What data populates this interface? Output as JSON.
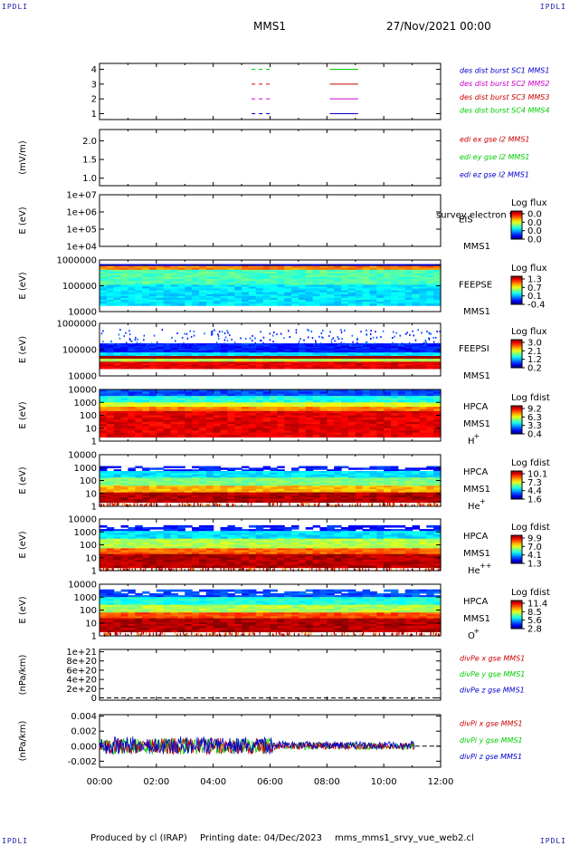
{
  "header": {
    "corner_label": "IPDLI",
    "spacecraft": "MMS1",
    "datetime": "27/Nov/2021 00:00"
  },
  "footer": {
    "produced_by": "Produced by cl (IRAP)",
    "printing_date": "Printing date: 04/Dec/2023",
    "script_name": "mms_mms1_srvy_vue_web2.cl"
  },
  "colors": {
    "blue": "#0000cc",
    "magenta": "#cc00cc",
    "red": "#cc0000",
    "green": "#00cc00"
  },
  "chart_data": [
    {
      "type": "line",
      "name": "des-dist-burst",
      "yticks": [
        "1",
        "2",
        "3",
        "4"
      ],
      "ylim": [
        0.6,
        4.4
      ],
      "ylabel": "",
      "legend": [
        {
          "text": "des dist burst SC1 MMS1",
          "color": "#0000cc"
        },
        {
          "text": "des dist burst SC2 MMS2",
          "color": "#cc00cc"
        },
        {
          "text": "des dist burst SC3 MMS3",
          "color": "#cc0000"
        },
        {
          "text": "des dist burst SC4 MMS4",
          "color": "#00cc00"
        }
      ],
      "segments": [
        {
          "y": 1,
          "color": "#0000cc",
          "dashed": [
            5.35,
            6.05
          ],
          "solid": [
            8.1,
            9.1
          ]
        },
        {
          "y": 2,
          "color": "#cc00cc",
          "dashed": [
            5.35,
            6.05
          ],
          "solid": [
            8.1,
            9.1
          ]
        },
        {
          "y": 3,
          "color": "#cc0000",
          "dashed": [
            5.35,
            6.05
          ],
          "solid": [
            8.1,
            9.1
          ]
        },
        {
          "y": 4,
          "color": "#00cc00",
          "dashed": [
            5.35,
            6.05
          ],
          "solid": [
            8.1,
            9.1
          ]
        }
      ]
    },
    {
      "type": "line",
      "name": "edi-e",
      "ylabel": "(mV/m)",
      "yticks": [
        "1.0",
        "1.5",
        "2.0"
      ],
      "ylim": [
        0.8,
        2.3
      ],
      "legend": [
        {
          "text": "edi ex gse l2 MMS1",
          "color": "#cc0000"
        },
        {
          "text": "edi ey gse l2 MMS1",
          "color": "#00cc00"
        },
        {
          "text": "edi ez gse l2 MMS1",
          "color": "#0000cc"
        }
      ]
    },
    {
      "type": "heatmap",
      "name": "eis",
      "ylabel": "E (eV)",
      "yticks": [
        "1e+04",
        "1e+05",
        "1e+06",
        "1e+07"
      ],
      "instrument": "EIS",
      "spacecraft": "MMS1",
      "extra_label": "survey electron to",
      "colorbar_title": "Log flux",
      "colorbar_ticks": [
        "0.0",
        "0.0",
        "0.0",
        "0.0"
      ],
      "empty": true
    },
    {
      "type": "heatmap",
      "name": "feeps-e",
      "ylabel": "E (eV)",
      "yticks": [
        "10000",
        "100000",
        "1000000"
      ],
      "instrument": "FEEPSE",
      "spacecraft": "MMS1",
      "colorbar_title": "Log flux",
      "colorbar_ticks": [
        "1.3",
        "0.7",
        "0.1",
        "-0.4"
      ],
      "band": [
        0.08,
        0.88
      ]
    },
    {
      "type": "heatmap",
      "name": "feeps-i",
      "ylabel": "E (eV)",
      "yticks": [
        "10000",
        "100000",
        "1000000"
      ],
      "instrument": "FEEPSI",
      "spacecraft": "MMS1",
      "colorbar_title": "Log flux",
      "colorbar_ticks": [
        "3.0",
        "2.1",
        "1.2",
        "0.2"
      ],
      "band": [
        0.38,
        0.86
      ]
    },
    {
      "type": "heatmap",
      "name": "hpca-h",
      "ylabel": "E (eV)",
      "yticks": [
        "1",
        "10",
        "100",
        "1000",
        "10000"
      ],
      "instrument": "HPCA",
      "spacecraft": "MMS1",
      "species": "H",
      "species_sup": "+",
      "colorbar_title": "Log fdist",
      "colorbar_ticks": [
        "9.2",
        "6.3",
        "3.3",
        "0.4"
      ],
      "band": [
        0.0,
        0.92
      ]
    },
    {
      "type": "heatmap",
      "name": "hpca-he",
      "ylabel": "E (eV)",
      "yticks": [
        "1",
        "10",
        "100",
        "1000",
        "10000"
      ],
      "instrument": "HPCA",
      "spacecraft": "MMS1",
      "species": "He",
      "species_sup": "+",
      "colorbar_title": "Log fdist",
      "colorbar_ticks": [
        "10.1",
        "7.3",
        "4.4",
        "1.6"
      ],
      "band": [
        0.22,
        0.92
      ]
    },
    {
      "type": "heatmap",
      "name": "hpca-he2",
      "ylabel": "E (eV)",
      "yticks": [
        "1",
        "10",
        "100",
        "1000",
        "10000"
      ],
      "instrument": "HPCA",
      "spacecraft": "MMS1",
      "species": "He",
      "species_sup": "++",
      "colorbar_title": "Log fdist",
      "colorbar_ticks": [
        "9.9",
        "7.0",
        "4.1",
        "1.3"
      ],
      "band": [
        0.12,
        0.94
      ]
    },
    {
      "type": "heatmap",
      "name": "hpca-o",
      "ylabel": "E (eV)",
      "yticks": [
        "1",
        "10",
        "100",
        "1000",
        "10000"
      ],
      "instrument": "HPCA",
      "spacecraft": "MMS1",
      "species": "O",
      "species_sup": "+",
      "colorbar_title": "Log fdist",
      "colorbar_ticks": [
        "11.4",
        "8.5",
        "5.6",
        "2.8"
      ],
      "band": [
        0.1,
        0.92
      ]
    },
    {
      "type": "line",
      "name": "div-pe",
      "ylabel": "(nPa/km)",
      "yticks": [
        "0",
        "2e+20",
        "4e+20",
        "6e+20",
        "8e+20",
        "1e+21"
      ],
      "ylim": [
        -5e+19,
        1.05e+21
      ],
      "legend": [
        {
          "text": "divPe x gse MMS1",
          "color": "#cc0000"
        },
        {
          "text": "divPe y gse MMS1",
          "color": "#00cc00"
        },
        {
          "text": "divPe z gse MMS1",
          "color": "#0000cc"
        }
      ]
    },
    {
      "type": "line",
      "name": "div-pi",
      "ylabel": "(nPa/km)",
      "yticks": [
        "-0.002",
        "0.000",
        "0.002",
        "0.004"
      ],
      "ylim": [
        -0.0028,
        0.0042
      ],
      "legend": [
        {
          "text": "divPi x gse MMS1",
          "color": "#cc0000"
        },
        {
          "text": "divPi y gse MMS1",
          "color": "#00cc00"
        },
        {
          "text": "divPi z gse MMS1",
          "color": "#0000cc"
        }
      ],
      "data_end_hour": 11.1
    }
  ],
  "xaxis": {
    "ticks": [
      "00:00",
      "02:00",
      "04:00",
      "06:00",
      "08:00",
      "10:00",
      "12:00"
    ],
    "range_hours": [
      0,
      12
    ]
  }
}
